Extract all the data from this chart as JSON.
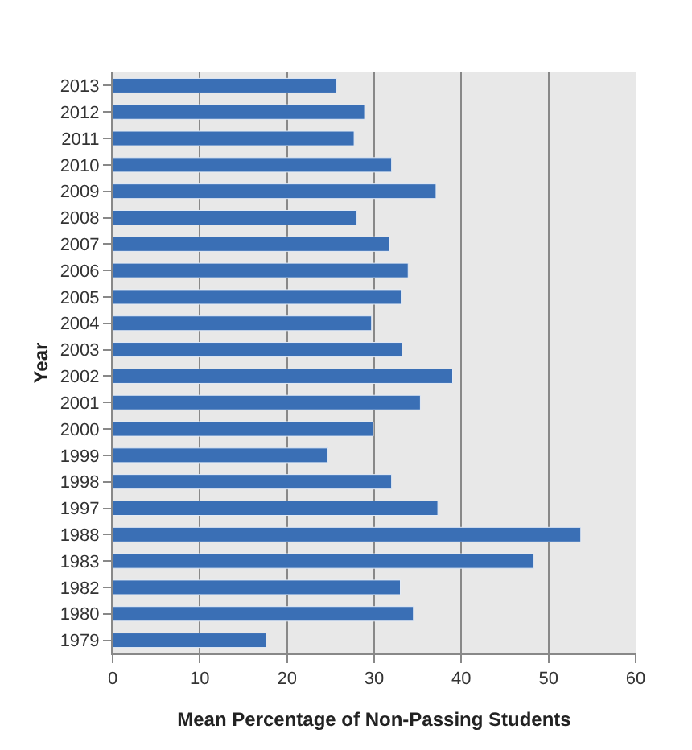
{
  "chart_data": {
    "type": "bar",
    "orientation": "horizontal",
    "xlabel": "Mean Percentage of Non-Passing Students",
    "ylabel": "Year",
    "categories": [
      "2013",
      "2012",
      "2011",
      "2010",
      "2009",
      "2008",
      "2007",
      "2006",
      "2005",
      "2004",
      "2003",
      "2002",
      "2001",
      "2000",
      "1999",
      "1998",
      "1997",
      "1988",
      "1983",
      "1982",
      "1980",
      "1979"
    ],
    "values": [
      25.7,
      28.9,
      27.7,
      32.0,
      37.1,
      28.0,
      31.8,
      33.9,
      33.1,
      29.7,
      33.2,
      39.0,
      35.3,
      29.9,
      24.7,
      32.0,
      37.3,
      53.7,
      48.3,
      33.0,
      34.5,
      17.6
    ],
    "color": "#3a6fb5",
    "xlim": [
      0,
      60
    ],
    "xticks": [
      0,
      10,
      20,
      30,
      40,
      50,
      60
    ],
    "grid": "x"
  }
}
